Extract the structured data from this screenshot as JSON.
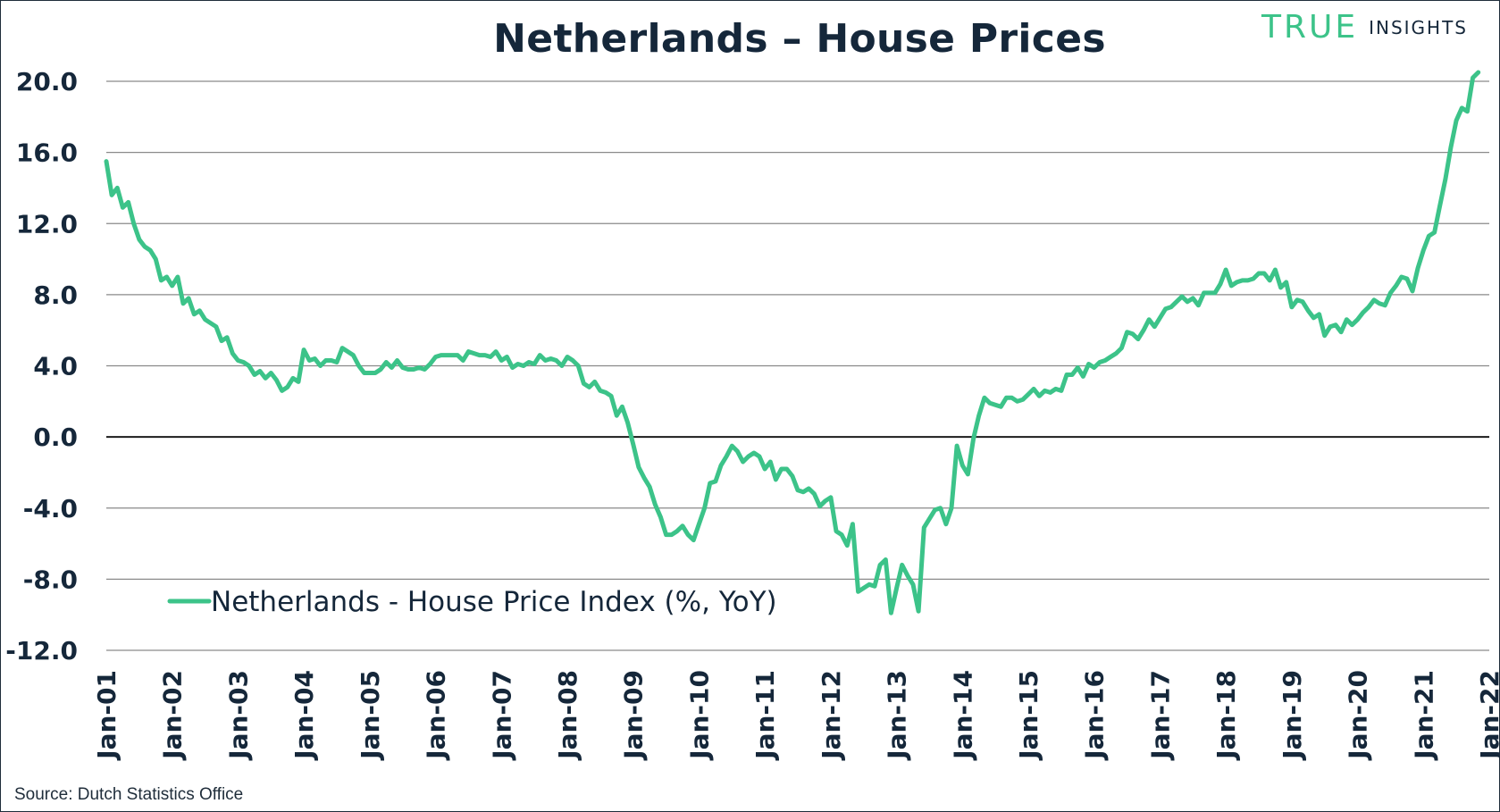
{
  "logo": {
    "mark": "TRUE",
    "word": "INSIGHTS"
  },
  "source": "Source: Dutch Statistics Office",
  "chart_data": {
    "type": "line",
    "title": "Netherlands – House Prices",
    "xlabel": "",
    "ylabel": "",
    "ylim": [
      -12,
      20
    ],
    "yticks": [
      20,
      16,
      12,
      8,
      4,
      0,
      -4,
      -8,
      -12
    ],
    "ytick_labels": [
      "20.0",
      "16.0",
      "12.0",
      "8.0",
      "4.0",
      "0.0",
      "-4.0",
      "-8.0",
      "-12.0"
    ],
    "xticks": [
      "Jan-01",
      "Jan-02",
      "Jan-03",
      "Jan-04",
      "Jan-05",
      "Jan-06",
      "Jan-07",
      "Jan-08",
      "Jan-09",
      "Jan-10",
      "Jan-11",
      "Jan-12",
      "Jan-13",
      "Jan-14",
      "Jan-15",
      "Jan-16",
      "Jan-17",
      "Jan-18",
      "Jan-19",
      "Jan-20",
      "Jan-21",
      "Jan-22"
    ],
    "grid": true,
    "legend": "bottom-left",
    "color": "#3cc389",
    "series": [
      {
        "name": "Netherlands - House Price Index (%, YoY)",
        "points": [
          [
            "2001-01",
            15.5
          ],
          [
            "2001-02",
            13.6
          ],
          [
            "2001-03",
            14.0
          ],
          [
            "2001-04",
            12.9
          ],
          [
            "2001-05",
            13.2
          ],
          [
            "2001-06",
            12.0
          ],
          [
            "2001-07",
            11.1
          ],
          [
            "2001-08",
            10.7
          ],
          [
            "2001-09",
            10.5
          ],
          [
            "2001-10",
            10.0
          ],
          [
            "2001-11",
            8.8
          ],
          [
            "2001-12",
            9.0
          ],
          [
            "2002-01",
            8.5
          ],
          [
            "2002-02",
            9.0
          ],
          [
            "2002-03",
            7.5
          ],
          [
            "2002-04",
            7.8
          ],
          [
            "2002-05",
            6.9
          ],
          [
            "2002-06",
            7.1
          ],
          [
            "2002-07",
            6.6
          ],
          [
            "2002-08",
            6.4
          ],
          [
            "2002-09",
            6.2
          ],
          [
            "2002-10",
            5.4
          ],
          [
            "2002-11",
            5.6
          ],
          [
            "2002-12",
            4.7
          ],
          [
            "2003-01",
            4.3
          ],
          [
            "2003-02",
            4.2
          ],
          [
            "2003-03",
            4.0
          ],
          [
            "2003-04",
            3.5
          ],
          [
            "2003-05",
            3.7
          ],
          [
            "2003-06",
            3.3
          ],
          [
            "2003-07",
            3.6
          ],
          [
            "2003-08",
            3.2
          ],
          [
            "2003-09",
            2.6
          ],
          [
            "2003-10",
            2.8
          ],
          [
            "2003-11",
            3.3
          ],
          [
            "2003-12",
            3.1
          ],
          [
            "2004-01",
            4.9
          ],
          [
            "2004-02",
            4.3
          ],
          [
            "2004-03",
            4.4
          ],
          [
            "2004-04",
            4.0
          ],
          [
            "2004-05",
            4.3
          ],
          [
            "2004-06",
            4.3
          ],
          [
            "2004-07",
            4.2
          ],
          [
            "2004-08",
            5.0
          ],
          [
            "2004-09",
            4.8
          ],
          [
            "2004-10",
            4.6
          ],
          [
            "2004-11",
            4.0
          ],
          [
            "2004-12",
            3.6
          ],
          [
            "2005-01",
            3.6
          ],
          [
            "2005-02",
            3.6
          ],
          [
            "2005-03",
            3.8
          ],
          [
            "2005-04",
            4.2
          ],
          [
            "2005-05",
            3.9
          ],
          [
            "2005-06",
            4.3
          ],
          [
            "2005-07",
            3.9
          ],
          [
            "2005-08",
            3.8
          ],
          [
            "2005-09",
            3.8
          ],
          [
            "2005-10",
            3.9
          ],
          [
            "2005-11",
            3.8
          ],
          [
            "2005-12",
            4.1
          ],
          [
            "2006-01",
            4.5
          ],
          [
            "2006-02",
            4.6
          ],
          [
            "2006-03",
            4.6
          ],
          [
            "2006-04",
            4.6
          ],
          [
            "2006-05",
            4.6
          ],
          [
            "2006-06",
            4.3
          ],
          [
            "2006-07",
            4.8
          ],
          [
            "2006-08",
            4.7
          ],
          [
            "2006-09",
            4.6
          ],
          [
            "2006-10",
            4.6
          ],
          [
            "2006-11",
            4.5
          ],
          [
            "2006-12",
            4.8
          ],
          [
            "2007-01",
            4.3
          ],
          [
            "2007-02",
            4.5
          ],
          [
            "2007-03",
            3.9
          ],
          [
            "2007-04",
            4.1
          ],
          [
            "2007-05",
            4.0
          ],
          [
            "2007-06",
            4.2
          ],
          [
            "2007-07",
            4.1
          ],
          [
            "2007-08",
            4.6
          ],
          [
            "2007-09",
            4.3
          ],
          [
            "2007-10",
            4.4
          ],
          [
            "2007-11",
            4.3
          ],
          [
            "2007-12",
            4.0
          ],
          [
            "2008-01",
            4.5
          ],
          [
            "2008-02",
            4.3
          ],
          [
            "2008-03",
            4.0
          ],
          [
            "2008-04",
            3.0
          ],
          [
            "2008-05",
            2.8
          ],
          [
            "2008-06",
            3.1
          ],
          [
            "2008-07",
            2.6
          ],
          [
            "2008-08",
            2.5
          ],
          [
            "2008-09",
            2.3
          ],
          [
            "2008-10",
            1.2
          ],
          [
            "2008-11",
            1.7
          ],
          [
            "2008-12",
            0.8
          ],
          [
            "2009-01",
            -0.4
          ],
          [
            "2009-02",
            -1.7
          ],
          [
            "2009-03",
            -2.3
          ],
          [
            "2009-04",
            -2.8
          ],
          [
            "2009-05",
            -3.8
          ],
          [
            "2009-06",
            -4.5
          ],
          [
            "2009-07",
            -5.5
          ],
          [
            "2009-08",
            -5.5
          ],
          [
            "2009-09",
            -5.3
          ],
          [
            "2009-10",
            -5.0
          ],
          [
            "2009-11",
            -5.5
          ],
          [
            "2009-12",
            -5.8
          ],
          [
            "2010-01",
            -4.9
          ],
          [
            "2010-02",
            -4.0
          ],
          [
            "2010-03",
            -2.6
          ],
          [
            "2010-04",
            -2.5
          ],
          [
            "2010-05",
            -1.6
          ],
          [
            "2010-06",
            -1.1
          ],
          [
            "2010-07",
            -0.5
          ],
          [
            "2010-08",
            -0.8
          ],
          [
            "2010-09",
            -1.4
          ],
          [
            "2010-10",
            -1.1
          ],
          [
            "2010-11",
            -0.9
          ],
          [
            "2010-12",
            -1.1
          ],
          [
            "2011-01",
            -1.8
          ],
          [
            "2011-02",
            -1.4
          ],
          [
            "2011-03",
            -2.4
          ],
          [
            "2011-04",
            -1.8
          ],
          [
            "2011-05",
            -1.8
          ],
          [
            "2011-06",
            -2.2
          ],
          [
            "2011-07",
            -3.0
          ],
          [
            "2011-08",
            -3.1
          ],
          [
            "2011-09",
            -2.9
          ],
          [
            "2011-10",
            -3.2
          ],
          [
            "2011-11",
            -3.9
          ],
          [
            "2011-12",
            -3.6
          ],
          [
            "2012-01",
            -3.4
          ],
          [
            "2012-02",
            -5.3
          ],
          [
            "2012-03",
            -5.5
          ],
          [
            "2012-04",
            -6.1
          ],
          [
            "2012-05",
            -4.9
          ],
          [
            "2012-06",
            -8.7
          ],
          [
            "2012-07",
            -8.5
          ],
          [
            "2012-08",
            -8.3
          ],
          [
            "2012-09",
            -8.4
          ],
          [
            "2012-10",
            -7.2
          ],
          [
            "2012-11",
            -6.9
          ],
          [
            "2012-12",
            -9.9
          ],
          [
            "2013-01",
            -8.5
          ],
          [
            "2013-02",
            -7.2
          ],
          [
            "2013-03",
            -7.8
          ],
          [
            "2013-04",
            -8.3
          ],
          [
            "2013-05",
            -9.8
          ],
          [
            "2013-06",
            -5.1
          ],
          [
            "2013-07",
            -4.6
          ],
          [
            "2013-08",
            -4.1
          ],
          [
            "2013-09",
            -4.0
          ],
          [
            "2013-10",
            -4.9
          ],
          [
            "2013-11",
            -4.0
          ],
          [
            "2013-12",
            -0.5
          ],
          [
            "2014-01",
            -1.6
          ],
          [
            "2014-02",
            -2.1
          ],
          [
            "2014-03",
            -0.1
          ],
          [
            "2014-04",
            1.2
          ],
          [
            "2014-05",
            2.2
          ],
          [
            "2014-06",
            1.9
          ],
          [
            "2014-07",
            1.8
          ],
          [
            "2014-08",
            1.7
          ],
          [
            "2014-09",
            2.2
          ],
          [
            "2014-10",
            2.2
          ],
          [
            "2014-11",
            2.0
          ],
          [
            "2014-12",
            2.1
          ],
          [
            "2015-01",
            2.4
          ],
          [
            "2015-02",
            2.7
          ],
          [
            "2015-03",
            2.3
          ],
          [
            "2015-04",
            2.6
          ],
          [
            "2015-05",
            2.5
          ],
          [
            "2015-06",
            2.7
          ],
          [
            "2015-07",
            2.6
          ],
          [
            "2015-08",
            3.5
          ],
          [
            "2015-09",
            3.5
          ],
          [
            "2015-10",
            3.9
          ],
          [
            "2015-11",
            3.4
          ],
          [
            "2015-12",
            4.1
          ],
          [
            "2016-01",
            3.9
          ],
          [
            "2016-02",
            4.2
          ],
          [
            "2016-03",
            4.3
          ],
          [
            "2016-04",
            4.5
          ],
          [
            "2016-05",
            4.7
          ],
          [
            "2016-06",
            5.0
          ],
          [
            "2016-07",
            5.9
          ],
          [
            "2016-08",
            5.8
          ],
          [
            "2016-09",
            5.5
          ],
          [
            "2016-10",
            6.0
          ],
          [
            "2016-11",
            6.6
          ],
          [
            "2016-12",
            6.2
          ],
          [
            "2017-01",
            6.7
          ],
          [
            "2017-02",
            7.2
          ],
          [
            "2017-03",
            7.3
          ],
          [
            "2017-04",
            7.6
          ],
          [
            "2017-05",
            7.9
          ],
          [
            "2017-06",
            7.6
          ],
          [
            "2017-07",
            7.8
          ],
          [
            "2017-08",
            7.4
          ],
          [
            "2017-09",
            8.1
          ],
          [
            "2017-10",
            8.1
          ],
          [
            "2017-11",
            8.1
          ],
          [
            "2017-12",
            8.6
          ],
          [
            "2018-01",
            9.4
          ],
          [
            "2018-02",
            8.5
          ],
          [
            "2018-03",
            8.7
          ],
          [
            "2018-04",
            8.8
          ],
          [
            "2018-05",
            8.8
          ],
          [
            "2018-06",
            8.9
          ],
          [
            "2018-07",
            9.2
          ],
          [
            "2018-08",
            9.2
          ],
          [
            "2018-09",
            8.8
          ],
          [
            "2018-10",
            9.4
          ],
          [
            "2018-11",
            8.4
          ],
          [
            "2018-12",
            8.7
          ],
          [
            "2019-01",
            7.3
          ],
          [
            "2019-02",
            7.7
          ],
          [
            "2019-03",
            7.6
          ],
          [
            "2019-04",
            7.1
          ],
          [
            "2019-05",
            6.7
          ],
          [
            "2019-06",
            6.9
          ],
          [
            "2019-07",
            5.7
          ],
          [
            "2019-08",
            6.2
          ],
          [
            "2019-09",
            6.3
          ],
          [
            "2019-10",
            5.9
          ],
          [
            "2019-11",
            6.6
          ],
          [
            "2019-12",
            6.3
          ],
          [
            "2020-01",
            6.6
          ],
          [
            "2020-02",
            7.0
          ],
          [
            "2020-03",
            7.3
          ],
          [
            "2020-04",
            7.7
          ],
          [
            "2020-05",
            7.5
          ],
          [
            "2020-06",
            7.4
          ],
          [
            "2020-07",
            8.1
          ],
          [
            "2020-08",
            8.5
          ],
          [
            "2020-09",
            9.0
          ],
          [
            "2020-10",
            8.9
          ],
          [
            "2020-11",
            8.2
          ],
          [
            "2020-12",
            9.5
          ],
          [
            "2021-01",
            10.5
          ],
          [
            "2021-02",
            11.3
          ],
          [
            "2021-03",
            11.5
          ],
          [
            "2021-04",
            13.0
          ],
          [
            "2021-05",
            14.5
          ],
          [
            "2021-06",
            16.3
          ],
          [
            "2021-07",
            17.8
          ],
          [
            "2021-08",
            18.5
          ],
          [
            "2021-09",
            18.3
          ],
          [
            "2021-10",
            20.2
          ],
          [
            "2021-11",
            20.5
          ]
        ]
      }
    ]
  }
}
